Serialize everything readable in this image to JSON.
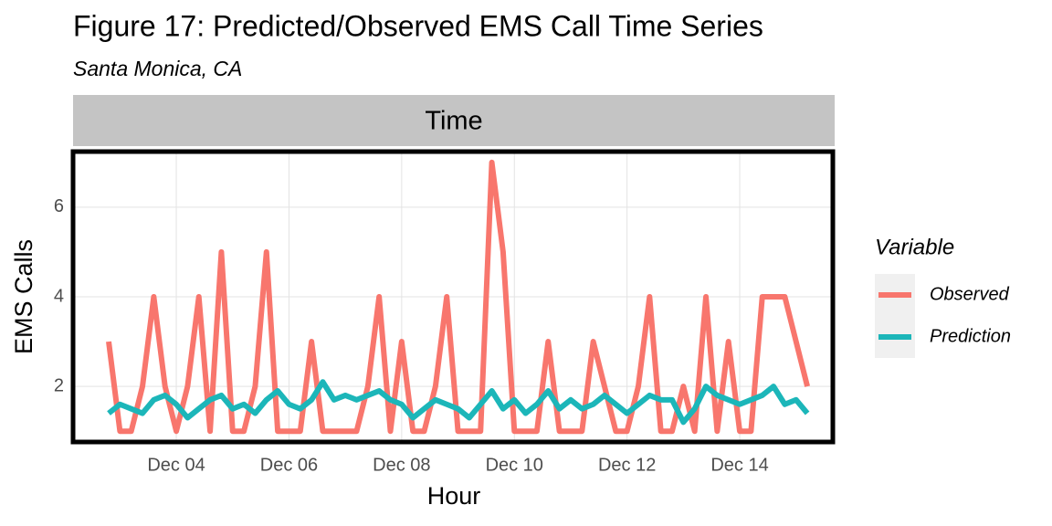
{
  "chart_data": {
    "type": "line",
    "title": "Figure 17: Predicted/Observed EMS Call Time Series",
    "subtitle": "Santa Monica, CA",
    "facet_label": "Time",
    "x_label": "Hour",
    "y_label": "EMS Calls",
    "legend_title": "Variable",
    "legend_position": "right",
    "grid": true,
    "x": [
      2.8,
      3.0,
      3.2,
      3.4,
      3.6,
      3.8,
      4.0,
      4.2,
      4.4,
      4.6,
      4.8,
      5.0,
      5.2,
      5.4,
      5.6,
      5.8,
      6.0,
      6.2,
      6.4,
      6.6,
      6.8,
      7.0,
      7.2,
      7.4,
      7.6,
      7.8,
      8.0,
      8.2,
      8.4,
      8.6,
      8.8,
      9.0,
      9.2,
      9.4,
      9.6,
      9.8,
      10.0,
      10.2,
      10.4,
      10.6,
      10.8,
      11.0,
      11.2,
      11.4,
      11.6,
      11.8,
      12.0,
      12.2,
      12.4,
      12.6,
      12.8,
      13.0,
      13.2,
      13.4,
      13.6,
      13.8,
      14.0,
      14.2,
      14.4,
      14.6,
      14.8,
      15.0,
      15.2
    ],
    "series": [
      {
        "name": "Observed",
        "color": "#f8766d",
        "values": [
          3,
          1,
          1,
          2,
          4,
          2,
          1,
          2,
          4,
          1,
          5,
          1,
          1,
          2,
          5,
          1,
          1,
          1,
          3,
          1,
          1,
          1,
          1,
          2,
          4,
          1,
          3,
          1,
          1,
          2,
          4,
          1,
          1,
          1,
          7,
          5,
          1,
          1,
          1,
          3,
          1,
          1,
          1,
          3,
          2,
          1,
          1,
          2,
          4,
          1,
          1,
          2,
          1,
          4,
          1,
          3,
          1,
          1,
          4,
          4,
          4,
          3,
          2
        ]
      },
      {
        "name": "Prediction",
        "color": "#1cb6b9",
        "values": [
          1.4,
          1.6,
          1.5,
          1.4,
          1.7,
          1.8,
          1.6,
          1.3,
          1.5,
          1.7,
          1.8,
          1.5,
          1.6,
          1.4,
          1.7,
          1.9,
          1.6,
          1.5,
          1.7,
          2.1,
          1.7,
          1.8,
          1.7,
          1.8,
          1.9,
          1.7,
          1.6,
          1.3,
          1.5,
          1.7,
          1.6,
          1.5,
          1.3,
          1.6,
          1.9,
          1.5,
          1.7,
          1.4,
          1.6,
          1.9,
          1.5,
          1.7,
          1.5,
          1.6,
          1.8,
          1.6,
          1.4,
          1.6,
          1.8,
          1.7,
          1.7,
          1.2,
          1.5,
          2.0,
          1.8,
          1.7,
          1.6,
          1.7,
          1.8,
          2.0,
          1.6,
          1.7,
          1.4
        ]
      }
    ],
    "xlim": [
      2.2,
      15.62
    ],
    "xticks": [
      {
        "value": 4,
        "label": "Dec 04"
      },
      {
        "value": 6,
        "label": "Dec 06"
      },
      {
        "value": 8,
        "label": "Dec 08"
      },
      {
        "value": 10,
        "label": "Dec 10"
      },
      {
        "value": 12,
        "label": "Dec 12"
      },
      {
        "value": 14,
        "label": "Dec 14"
      }
    ],
    "ylim": [
      0.8,
      7.2
    ],
    "yticks": [
      2,
      4,
      6
    ]
  }
}
